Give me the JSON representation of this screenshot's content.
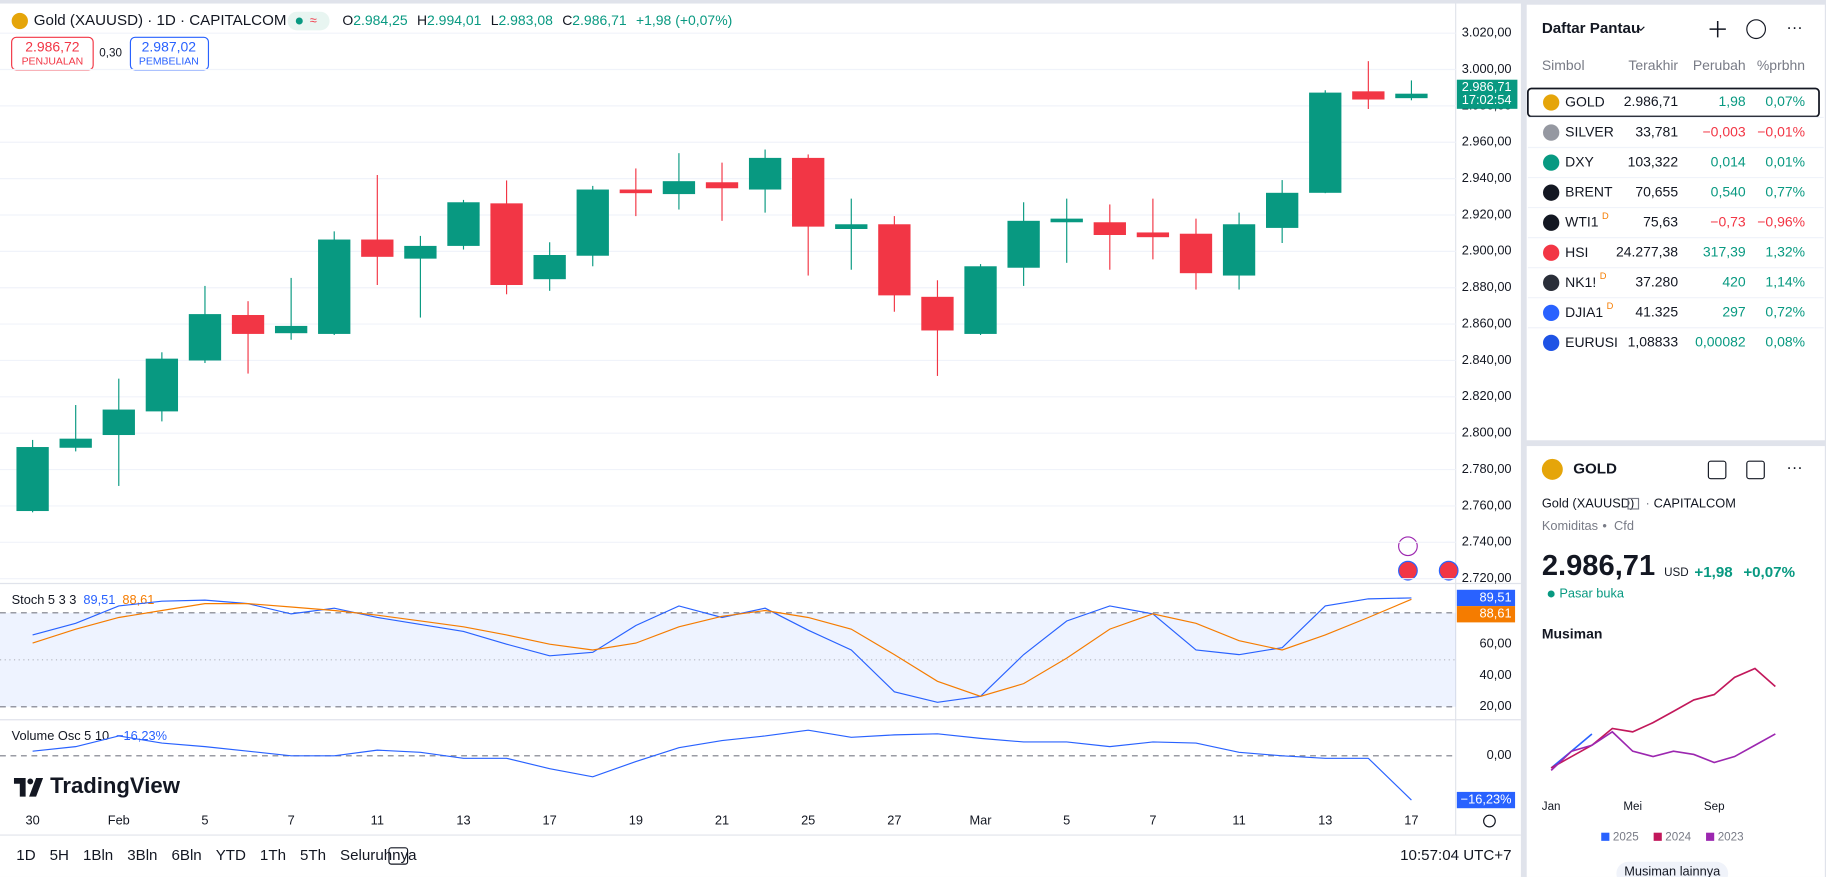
{
  "header": {
    "title": "Gold (XAUUSD) · 1D · CAPITALCOM",
    "ohlc": [
      {
        "label": "O",
        "value": "2.984,25"
      },
      {
        "label": "H",
        "value": "2.994,01"
      },
      {
        "label": "L",
        "value": "2.983,08"
      },
      {
        "label": "C",
        "value": "2.986,71"
      }
    ],
    "change": "+1,98 (+0,07%)",
    "sell": {
      "price": "2.986,72",
      "label": "PENJUALAN"
    },
    "spread": "0,30",
    "buy": {
      "price": "2.987,02",
      "label": "PEMBELIAN"
    }
  },
  "chart_data": [
    {
      "type": "candlestick",
      "categories": [
        "30",
        null,
        "Feb",
        null,
        "5",
        null,
        "7",
        null,
        "11",
        null,
        "13",
        null,
        "17",
        null,
        "19",
        null,
        "21",
        null,
        "25",
        null,
        "27",
        null,
        "Mar",
        null,
        "5",
        null,
        "7",
        null,
        "11",
        null,
        "13",
        null,
        "17"
      ],
      "open": [
        2757.2,
        2792,
        2799,
        2812,
        2840,
        2865,
        2855,
        2854.6,
        2906.5,
        2896,
        2903,
        2926.4,
        2884.7,
        2897.6,
        2934,
        2931.5,
        2938,
        2934,
        2951.4,
        2912.3,
        2914.9,
        2875,
        2854.6,
        2891,
        2916,
        2916,
        2910.4,
        2909.7,
        2886.7,
        2912.9,
        2932.2,
        2988,
        2984.25
      ],
      "high": [
        2796.3,
        2815.5,
        2830,
        2844.5,
        2881,
        2872.6,
        2885.4,
        2911,
        2942,
        2908.5,
        2928.3,
        2939,
        2905,
        2936,
        2945.6,
        2954,
        2948.8,
        2956,
        2953.3,
        2929,
        2919.4,
        2884.1,
        2893,
        2927,
        2929,
        2925.8,
        2929,
        2918,
        2921.3,
        2939.2,
        2988.6,
        3004.6,
        2994.01
      ],
      "low": [
        2756.5,
        2790,
        2771,
        2806.5,
        2838.6,
        2832.8,
        2851.4,
        2854,
        2881.5,
        2863.6,
        2901,
        2876.4,
        2878.3,
        2891.8,
        2919.4,
        2923,
        2916.8,
        2921.3,
        2886.7,
        2889.9,
        2866.8,
        2831.5,
        2854,
        2881,
        2893.7,
        2889.9,
        2895.6,
        2879,
        2879,
        2904.6,
        2932,
        2978.3,
        2983.08
      ],
      "close": [
        2792.4,
        2797,
        2813,
        2841,
        2865.5,
        2854.6,
        2859,
        2906.5,
        2897,
        2903,
        2927,
        2881.5,
        2898,
        2934,
        2932,
        2938.6,
        2934.7,
        2951.4,
        2913.6,
        2914.9,
        2875.8,
        2856.5,
        2891.8,
        2916.8,
        2918,
        2909,
        2907.8,
        2888,
        2914.9,
        2932.2,
        2987.3,
        2983.5,
        2986.71
      ],
      "up_color": "#089981",
      "down_color": "#f23645",
      "ylim": [
        2718,
        3035
      ],
      "yticks": [
        {
          "value": 2720,
          "label": "2.720,00"
        },
        {
          "value": 2740,
          "label": "2.740,00"
        },
        {
          "value": 2760,
          "label": "2.760,00"
        },
        {
          "value": 2780,
          "label": "2.780,00"
        },
        {
          "value": 2800,
          "label": "2.800,00"
        },
        {
          "value": 2820,
          "label": "2.820,00"
        },
        {
          "value": 2840,
          "label": "2.840,00"
        },
        {
          "value": 2860,
          "label": "2.860,00"
        },
        {
          "value": 2880,
          "label": "2.880,00"
        },
        {
          "value": 2900,
          "label": "2.900,00"
        },
        {
          "value": 2920,
          "label": "2.920,00"
        },
        {
          "value": 2940,
          "label": "2.940,00"
        },
        {
          "value": 2960,
          "label": "2.960,00"
        },
        {
          "value": 2980,
          "label": "2.980,00"
        },
        {
          "value": 3000,
          "label": "3.000,00"
        },
        {
          "value": 3020,
          "label": "3.020,00"
        }
      ],
      "grid": true,
      "last_price_label": "2.986,71",
      "countdown": "17:02:54"
    },
    {
      "type": "line",
      "title": "Stoch 5 3 3",
      "series": [
        {
          "color": "#2962ff",
          "values": [
            65.9,
            73.3,
            84.4,
            87.4,
            88.1,
            85.9,
            79.3,
            83,
            77,
            72.6,
            68.1,
            60,
            52.6,
            54.8,
            71.9,
            84.4,
            77,
            83,
            68.9,
            56.3,
            29.6,
            22.9,
            26.7,
            53.3,
            74.8,
            84.4,
            79.3,
            56.3,
            53.3,
            57.8,
            84.4,
            88.9,
            89.51
          ],
          "last_label": "89,51"
        },
        {
          "color": "#f57c00",
          "values": [
            60.7,
            69.6,
            77,
            81.5,
            85.9,
            85.9,
            83.7,
            81.5,
            78.5,
            74.8,
            71.1,
            65.9,
            60,
            56.3,
            60.7,
            71.1,
            77.8,
            81.5,
            77,
            69.6,
            53.3,
            36.3,
            26.7,
            34.8,
            51.1,
            69.6,
            79.3,
            73.3,
            62.2,
            56.3,
            65.9,
            77,
            88.61
          ],
          "last_label": "88,61"
        }
      ],
      "ylim": [
        12.5,
        96.5
      ],
      "yticks": [
        {
          "value": 20,
          "label": "20,00"
        },
        {
          "value": 40,
          "label": "40,00"
        },
        {
          "value": 60,
          "label": "60,00"
        }
      ],
      "bands": [
        20,
        80
      ],
      "midline": 50,
      "band_color": "#2962ff"
    },
    {
      "type": "line",
      "title": "Volume Osc 5 10",
      "series": [
        {
          "color": "#2962ff",
          "values": [
            1.7,
            3.4,
            7.3,
            4.7,
            3.4,
            1.7,
            0,
            0,
            2.1,
            1.3,
            -0.9,
            -0.9,
            -4.7,
            -7.7,
            -2.1,
            3,
            5.6,
            7.3,
            9.4,
            6.8,
            7.7,
            8.1,
            6.4,
            5.1,
            5.1,
            3.4,
            5.1,
            4.7,
            1.3,
            0,
            -0.9,
            -0.9,
            -16.23
          ],
          "last_label": "−16,23%"
        }
      ],
      "ylim": [
        -21.8,
        12.4
      ],
      "yticks": [
        {
          "value": 0,
          "label": "0,00"
        }
      ]
    },
    {
      "type": "line",
      "title": "Musiman",
      "categories": [
        "Jan",
        null,
        null,
        null,
        "Mei",
        null,
        null,
        null,
        "Sep",
        null,
        null,
        null
      ],
      "series": [
        {
          "name": "2025",
          "color": "#2962ff",
          "values": [
            1.4,
            5.4,
            9.5,
            null,
            null,
            null,
            null,
            null,
            null,
            null,
            null,
            null
          ]
        },
        {
          "name": "2024",
          "color": "#c2185b",
          "values": [
            1.4,
            4.1,
            6.8,
            10.8,
            10,
            12.2,
            14.9,
            17.6,
            18.9,
            23,
            25.1,
            20.8
          ]
        },
        {
          "name": "2023",
          "color": "#9c27b0",
          "values": [
            0.8,
            5.4,
            6.8,
            10,
            5.4,
            4.1,
            5.4,
            4.6,
            2.7,
            4.1,
            6.8,
            9.5
          ]
        }
      ],
      "ylim": [
        -1,
        29
      ]
    }
  ],
  "watchlist": {
    "title": "Daftar Pantau",
    "columns": [
      "Simbol",
      "Terakhir",
      "Perubah",
      "%prbhn"
    ],
    "rows": [
      {
        "symbol": "GOLD",
        "last": "2.986,71",
        "change": "1,98",
        "pct": "0,07%"
      },
      {
        "symbol": "SILVER",
        "last": "33,781",
        "change": "−0,003",
        "pct": "−0,01%"
      },
      {
        "symbol": "DXY",
        "last": "103,322",
        "change": "0,014",
        "pct": "0,01%"
      },
      {
        "symbol": "BRENT",
        "last": "70,655",
        "change": "0,540",
        "pct": "0,77%"
      },
      {
        "symbol": "WTI1",
        "flag": "D",
        "last": "75,63",
        "change": "−0,73",
        "pct": "−0,96%"
      },
      {
        "symbol": "HSI",
        "last": "24.277,38",
        "change": "317,39",
        "pct": "1,32%"
      },
      {
        "symbol": "NK1!",
        "flag": "D",
        "last": "37.280",
        "change": "420",
        "pct": "1,14%"
      },
      {
        "symbol": "DJIA1",
        "flag": "D",
        "last": "41.325",
        "change": "297",
        "pct": "0,72%"
      },
      {
        "symbol": "EURUSI",
        "last": "1,08833",
        "change": "0,00082",
        "pct": "0,08%"
      }
    ]
  },
  "details": {
    "symbol": "GOLD",
    "name": "Gold (XAUUSD)",
    "exchange": "CAPITALCOM",
    "kind": "Komiditas",
    "sub": "Cfd",
    "price": "2.986,71",
    "currency": "USD",
    "change": "+1,98",
    "pct": "+0,07%",
    "status": "Pasar buka",
    "more": "Musiman lainnya"
  },
  "toolbar": {
    "ranges": [
      "1D",
      "5H",
      "1Bln",
      "3Bln",
      "6Bln",
      "YTD",
      "1Th",
      "5Th",
      "Seluruhnya"
    ],
    "clock": "10:57:04 UTC+7"
  },
  "brand": "TradingView"
}
